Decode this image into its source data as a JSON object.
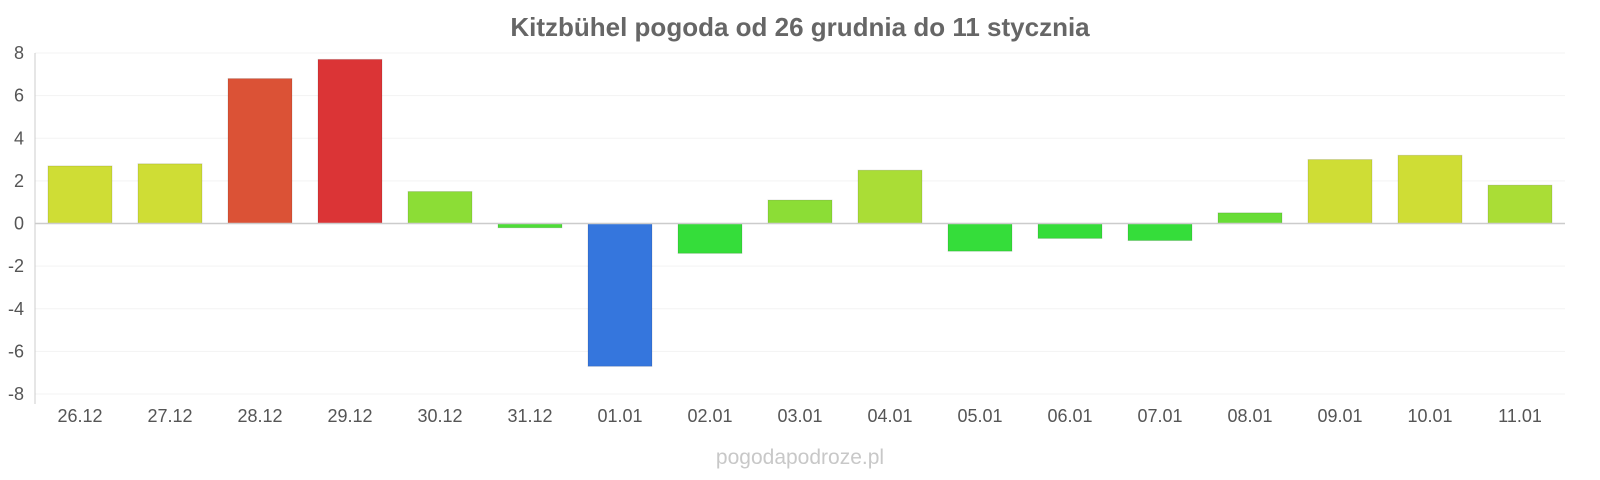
{
  "chart_data": {
    "type": "bar",
    "title": "Kitzbühel pogoda od 26 grudnia do 11 stycznia",
    "categories": [
      "26.12",
      "27.12",
      "28.12",
      "29.12",
      "30.12",
      "31.12",
      "01.01",
      "02.01",
      "03.01",
      "04.01",
      "05.01",
      "06.01",
      "07.01",
      "08.01",
      "09.01",
      "10.01",
      "11.01"
    ],
    "values": [
      2.7,
      2.8,
      6.8,
      7.7,
      1.5,
      -0.2,
      -6.7,
      -1.4,
      1.1,
      2.5,
      -1.3,
      -0.7,
      -0.8,
      0.5,
      3.0,
      3.2,
      1.8
    ],
    "colors": [
      "#cfdd35",
      "#cfdd35",
      "#db5236",
      "#db3436",
      "#8cdd36",
      "#4ddd36",
      "#3576dd",
      "#35dd3a",
      "#8cdd36",
      "#aadd36",
      "#35dd3a",
      "#35dd3a",
      "#35dd3a",
      "#68dd36",
      "#cfdd35",
      "#cfdd35",
      "#aadd36"
    ],
    "yticks": [
      "8",
      "6",
      "4",
      "2",
      "0",
      "-2",
      "-4",
      "-6",
      "-8"
    ],
    "ylim": [
      -8,
      8
    ],
    "xlabel": "",
    "ylabel": "",
    "grid": true,
    "legend": "none"
  },
  "watermark": "pogodapodroze.pl"
}
